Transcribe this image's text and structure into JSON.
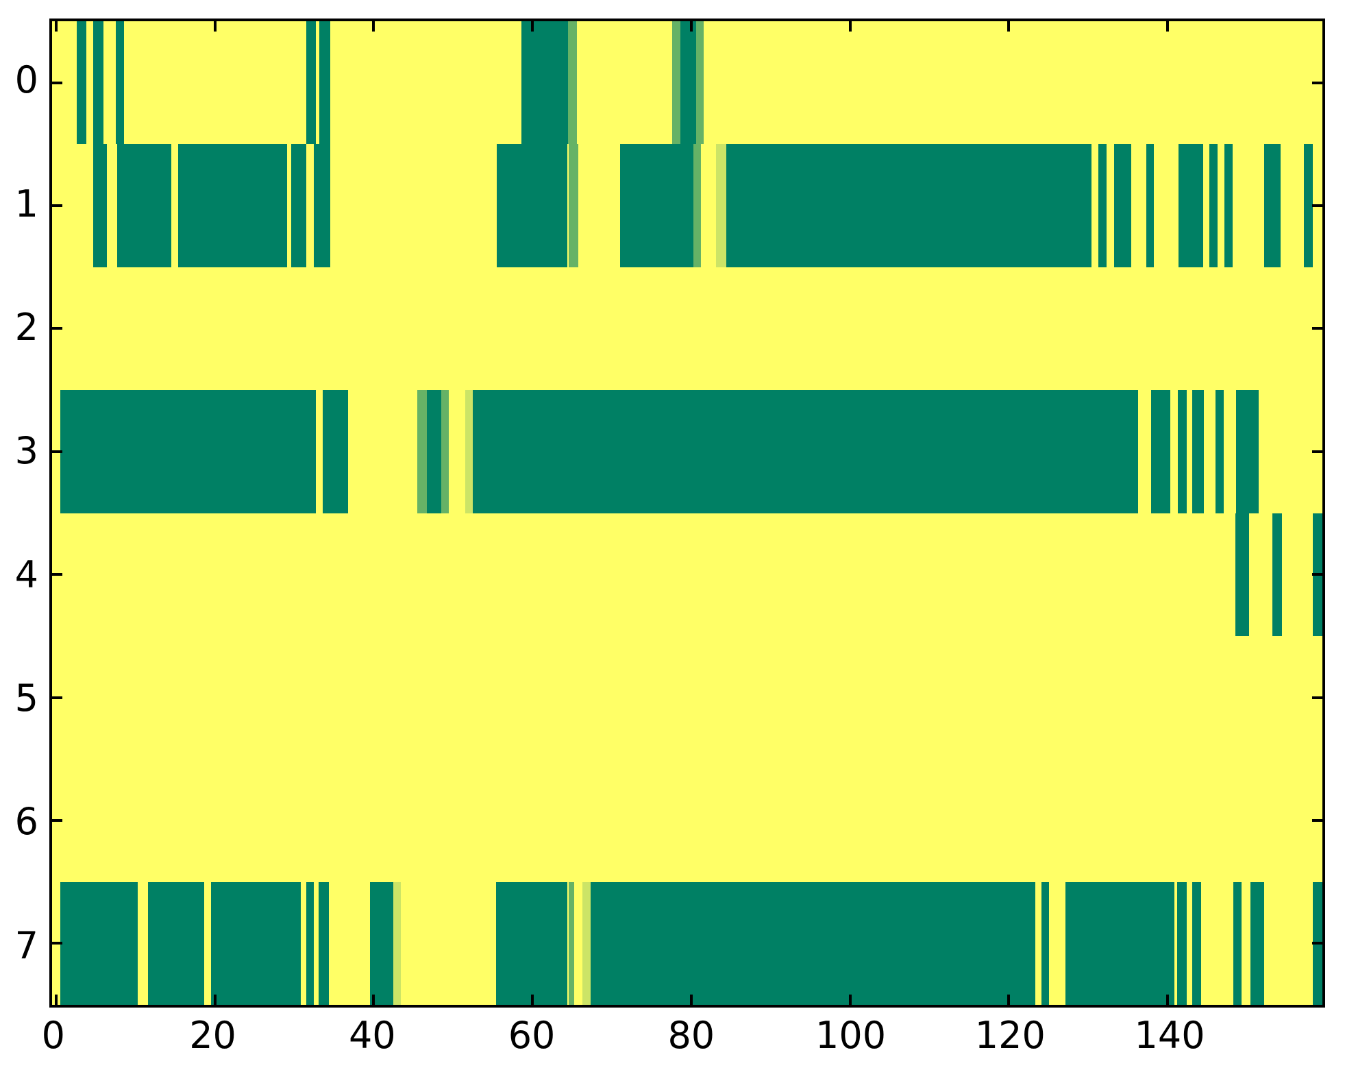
{
  "figure": {
    "title": "",
    "background_color": "#FFFFFF",
    "axis_color": "#000000"
  },
  "chart_data": {
    "type": "heatmap",
    "title": "",
    "xlabel": "",
    "ylabel": "",
    "xlim": [
      -0.5,
      159.5
    ],
    "ylim": [
      7.5,
      -0.5
    ],
    "grid": false,
    "legend": "none",
    "x_tick_labels": [
      "0",
      "20",
      "40",
      "60",
      "80",
      "100",
      "120",
      "140"
    ],
    "x_tick_values": [
      0,
      20,
      40,
      60,
      80,
      100,
      120,
      140
    ],
    "y_tick_labels": [
      "0",
      "1",
      "2",
      "3",
      "4",
      "5",
      "6",
      "7"
    ],
    "y_tick_values": [
      0,
      1,
      2,
      3,
      4,
      5,
      6,
      7
    ],
    "colors": {
      "background_high": "#FFFF66",
      "teal_low": "#008064",
      "medium_green": "#66B266",
      "pale_green": "#CCE466"
    },
    "rows": [
      {
        "y": 0,
        "segments": [
          {
            "x0": 2.6,
            "x1": 3.8,
            "c": "teal_low"
          },
          {
            "x0": 4.7,
            "x1": 6.0,
            "c": "teal_low"
          },
          {
            "x0": 7.5,
            "x1": 8.6,
            "c": "teal_low"
          },
          {
            "x0": 31.5,
            "x1": 32.7,
            "c": "teal_low"
          },
          {
            "x0": 33.2,
            "x1": 34.5,
            "c": "teal_low"
          },
          {
            "x0": 58.6,
            "x1": 64.5,
            "c": "teal_low"
          },
          {
            "x0": 64.5,
            "x1": 65.6,
            "c": "medium_green"
          },
          {
            "x0": 77.6,
            "x1": 78.6,
            "c": "medium_green"
          },
          {
            "x0": 78.6,
            "x1": 80.6,
            "c": "teal_low"
          },
          {
            "x0": 80.6,
            "x1": 81.6,
            "c": "medium_green"
          }
        ]
      },
      {
        "y": 1,
        "segments": [
          {
            "x0": 4.7,
            "x1": 6.4,
            "c": "teal_low"
          },
          {
            "x0": 7.7,
            "x1": 14.5,
            "c": "teal_low"
          },
          {
            "x0": 15.4,
            "x1": 29.1,
            "c": "teal_low"
          },
          {
            "x0": 29.6,
            "x1": 31.5,
            "c": "teal_low"
          },
          {
            "x0": 32.5,
            "x1": 34.5,
            "c": "teal_low"
          },
          {
            "x0": 55.5,
            "x1": 64.4,
            "c": "teal_low"
          },
          {
            "x0": 64.6,
            "x1": 65.8,
            "c": "medium_green"
          },
          {
            "x0": 71.0,
            "x1": 80.3,
            "c": "teal_low"
          },
          {
            "x0": 80.3,
            "x1": 81.2,
            "c": "medium_green"
          },
          {
            "x0": 83.1,
            "x1": 84.4,
            "c": "pale_green"
          },
          {
            "x0": 84.4,
            "x1": 130.4,
            "c": "teal_low"
          },
          {
            "x0": 131.3,
            "x1": 132.3,
            "c": "teal_low"
          },
          {
            "x0": 133.3,
            "x1": 135.4,
            "c": "teal_low"
          },
          {
            "x0": 137.3,
            "x1": 138.3,
            "c": "teal_low"
          },
          {
            "x0": 141.4,
            "x1": 144.5,
            "c": "teal_low"
          },
          {
            "x0": 145.3,
            "x1": 146.3,
            "c": "teal_low"
          },
          {
            "x0": 147.2,
            "x1": 148.2,
            "c": "teal_low"
          },
          {
            "x0": 152.2,
            "x1": 154.2,
            "c": "teal_low"
          },
          {
            "x0": 157.2,
            "x1": 158.3,
            "c": "teal_low"
          }
        ]
      },
      {
        "y": 2,
        "segments": []
      },
      {
        "y": 3,
        "segments": [
          {
            "x0": 0.5,
            "x1": 32.7,
            "c": "teal_low"
          },
          {
            "x0": 33.6,
            "x1": 36.8,
            "c": "teal_low"
          },
          {
            "x0": 45.5,
            "x1": 46.7,
            "c": "medium_green"
          },
          {
            "x0": 46.7,
            "x1": 48.5,
            "c": "teal_low"
          },
          {
            "x0": 48.5,
            "x1": 49.5,
            "c": "medium_green"
          },
          {
            "x0": 51.5,
            "x1": 52.5,
            "c": "pale_green"
          },
          {
            "x0": 52.5,
            "x1": 136.3,
            "c": "teal_low"
          },
          {
            "x0": 137.9,
            "x1": 140.3,
            "c": "teal_low"
          },
          {
            "x0": 141.3,
            "x1": 142.4,
            "c": "teal_low"
          },
          {
            "x0": 143.1,
            "x1": 144.6,
            "c": "teal_low"
          },
          {
            "x0": 146.0,
            "x1": 147.1,
            "c": "teal_low"
          },
          {
            "x0": 148.6,
            "x1": 151.5,
            "c": "teal_low"
          }
        ]
      },
      {
        "y": 4,
        "segments": [
          {
            "x0": 148.5,
            "x1": 150.3,
            "c": "teal_low"
          },
          {
            "x0": 153.2,
            "x1": 154.4,
            "c": "teal_low"
          },
          {
            "x0": 158.3,
            "x1": 159.5,
            "c": "teal_low"
          }
        ]
      },
      {
        "y": 5,
        "segments": []
      },
      {
        "y": 6,
        "segments": []
      },
      {
        "y": 7,
        "segments": [
          {
            "x0": 0.5,
            "x1": 10.3,
            "c": "teal_low"
          },
          {
            "x0": 11.6,
            "x1": 18.7,
            "c": "teal_low"
          },
          {
            "x0": 19.5,
            "x1": 30.8,
            "c": "teal_low"
          },
          {
            "x0": 31.5,
            "x1": 32.5,
            "c": "teal_low"
          },
          {
            "x0": 33.1,
            "x1": 34.4,
            "c": "teal_low"
          },
          {
            "x0": 39.5,
            "x1": 42.5,
            "c": "teal_low"
          },
          {
            "x0": 42.5,
            "x1": 43.4,
            "c": "pale_green"
          },
          {
            "x0": 55.4,
            "x1": 64.4,
            "c": "teal_low"
          },
          {
            "x0": 64.6,
            "x1": 65.3,
            "c": "medium_green"
          },
          {
            "x0": 66.3,
            "x1": 67.3,
            "c": "pale_green"
          },
          {
            "x0": 67.3,
            "x1": 123.3,
            "c": "teal_low"
          },
          {
            "x0": 124.1,
            "x1": 125.1,
            "c": "teal_low"
          },
          {
            "x0": 127.1,
            "x1": 140.9,
            "c": "teal_low"
          },
          {
            "x0": 141.2,
            "x1": 142.4,
            "c": "teal_low"
          },
          {
            "x0": 143.1,
            "x1": 144.2,
            "c": "teal_low"
          },
          {
            "x0": 148.3,
            "x1": 149.3,
            "c": "teal_low"
          },
          {
            "x0": 150.4,
            "x1": 152.2,
            "c": "teal_low"
          },
          {
            "x0": 158.3,
            "x1": 159.5,
            "c": "teal_low"
          }
        ]
      }
    ]
  }
}
